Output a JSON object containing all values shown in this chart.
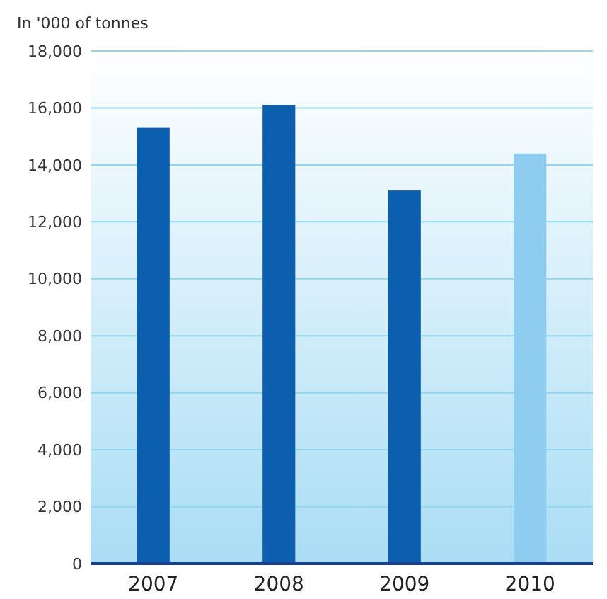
{
  "chart_data": {
    "type": "bar",
    "ylabel": "In '000 of tonnes",
    "categories": [
      "2007",
      "2008",
      "2009",
      "2010"
    ],
    "values": [
      15300,
      16100,
      13100,
      14400
    ],
    "colors": [
      "#0b5fae",
      "#0b5fae",
      "#0b5fae",
      "#8fcdf0"
    ],
    "ylim": [
      0,
      18000
    ],
    "yticks": [
      {
        "value": 0,
        "label": "0"
      },
      {
        "value": 2000,
        "label": "2,000"
      },
      {
        "value": 4000,
        "label": "4,000"
      },
      {
        "value": 6000,
        "label": "6,000"
      },
      {
        "value": 8000,
        "label": "8,000"
      },
      {
        "value": 10000,
        "label": "10,000"
      },
      {
        "value": 12000,
        "label": "12,000"
      },
      {
        "value": 14000,
        "label": "14,000"
      },
      {
        "value": 16000,
        "label": "16,000"
      },
      {
        "value": 18000,
        "label": "18,000"
      }
    ],
    "grid": "y"
  }
}
